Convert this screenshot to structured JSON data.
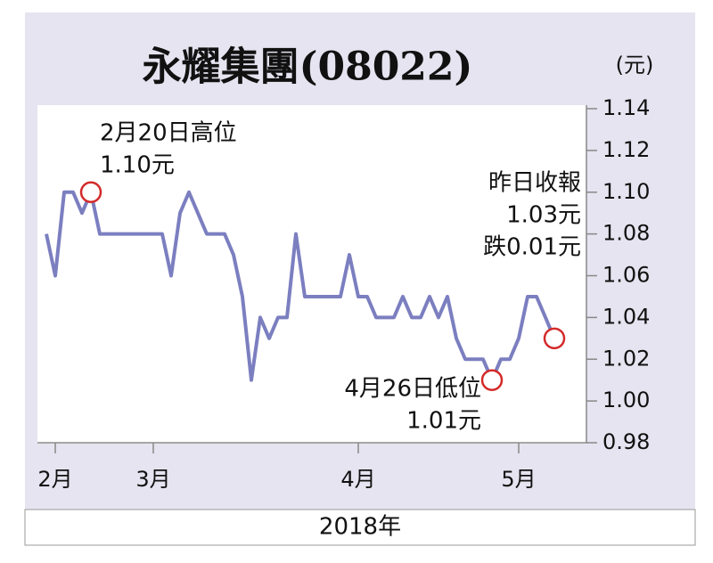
{
  "chart_data": {
    "type": "line",
    "title": "永耀集團(08022)",
    "y_unit": "(元)",
    "x_label": "2018年",
    "categories": [
      null,
      "2月",
      null,
      null,
      null,
      null,
      null,
      null,
      null,
      null,
      null,
      null,
      "3月",
      null,
      null,
      null,
      null,
      null,
      null,
      null,
      null,
      null,
      null,
      null,
      null,
      null,
      null,
      null,
      null,
      null,
      null,
      null,
      null,
      null,
      null,
      "4月",
      null,
      null,
      null,
      null,
      null,
      null,
      null,
      null,
      null,
      null,
      null,
      null,
      null,
      null,
      null,
      null,
      null,
      "5月",
      null,
      null,
      null,
      null
    ],
    "series": [
      {
        "color": "#7b7fc0",
        "values": [
          1.08,
          1.06,
          1.1,
          1.1,
          1.09,
          1.1,
          1.08,
          1.08,
          1.08,
          1.08,
          1.08,
          1.08,
          1.08,
          1.08,
          1.06,
          1.09,
          1.1,
          1.09,
          1.08,
          1.08,
          1.08,
          1.07,
          1.05,
          1.01,
          1.04,
          1.03,
          1.04,
          1.04,
          1.08,
          1.05,
          1.05,
          1.05,
          1.05,
          1.05,
          1.07,
          1.05,
          1.05,
          1.04,
          1.04,
          1.04,
          1.05,
          1.04,
          1.04,
          1.05,
          1.04,
          1.05,
          1.03,
          1.02,
          1.02,
          1.02,
          1.01,
          1.02,
          1.02,
          1.03,
          1.05,
          1.05,
          1.04,
          1.03
        ]
      }
    ],
    "ylim": [
      0.98,
      1.14
    ],
    "yticks": [
      0.98,
      {
        "value": 1.0,
        "label": "1.00"
      },
      1.02,
      1.04,
      1.06,
      1.08,
      {
        "value": 1.1,
        "label": "1.10"
      },
      1.12,
      1.14
    ],
    "grid": false,
    "annotations": [
      {
        "lines": [
          "2月20日高位",
          "1.10元"
        ]
      },
      {
        "lines": [
          "昨日收報",
          "1.03元",
          "跌0.01元"
        ]
      },
      {
        "lines": [
          "4月26日低位",
          "1.01元"
        ]
      }
    ]
  }
}
